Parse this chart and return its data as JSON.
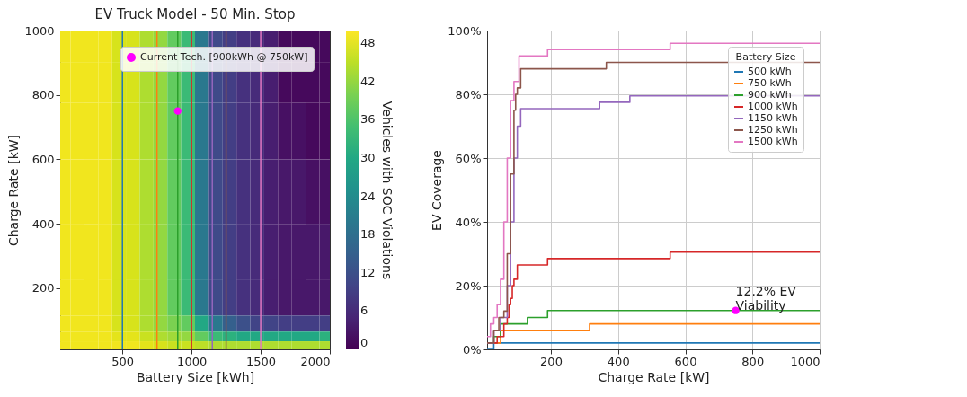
{
  "chart_data": [
    {
      "type": "heatmap",
      "title": "EV Truck Model - 50 Min. Stop",
      "xlabel": "Battery Size [kWh]",
      "ylabel": "Charge Rate [kW]",
      "clabel": "Vehicles with SOC Violations",
      "x": [
        75,
        175,
        275,
        375,
        475,
        575,
        675,
        775,
        875,
        975,
        1075,
        1175,
        1275,
        1375,
        1475,
        1575,
        1675,
        1775,
        1875,
        1975
      ],
      "y": [
        950,
        850,
        700,
        500,
        300,
        150,
        80,
        50,
        20
      ],
      "cells": [
        [
          49,
          49,
          49,
          49,
          47,
          47,
          44,
          42,
          38,
          34,
          20,
          11,
          9,
          7,
          6,
          4,
          1,
          1,
          1,
          1
        ],
        [
          49,
          49,
          49,
          49,
          47,
          47,
          44,
          42,
          38,
          34,
          20,
          11,
          9,
          7,
          6,
          4,
          1,
          1,
          1,
          1
        ],
        [
          49,
          49,
          49,
          49,
          47,
          47,
          44,
          42,
          38,
          34,
          20,
          11,
          9,
          7,
          6,
          4,
          2,
          2,
          1,
          1
        ],
        [
          49,
          49,
          49,
          49,
          47,
          47,
          44,
          42,
          38,
          34,
          20,
          11,
          9,
          7,
          6,
          4,
          3,
          3,
          2,
          2
        ],
        [
          49,
          49,
          49,
          49,
          47,
          47,
          44,
          42,
          38,
          34,
          20,
          11,
          9,
          7,
          6,
          4,
          3,
          3,
          3,
          3
        ],
        [
          49,
          49,
          49,
          49,
          47,
          47,
          44,
          42,
          38,
          34,
          20,
          11,
          9,
          7,
          6,
          4,
          3,
          3,
          3,
          3
        ],
        [
          49,
          49,
          49,
          49,
          47,
          47,
          44,
          42,
          40,
          38,
          30,
          20,
          15,
          12,
          10,
          10,
          9,
          9,
          9,
          9
        ],
        [
          49,
          49,
          49,
          49,
          48,
          48,
          46,
          44,
          43,
          42,
          38,
          34,
          32,
          30,
          30,
          30,
          30,
          30,
          30,
          32
        ],
        [
          49,
          49,
          49,
          49,
          49,
          49,
          48,
          47,
          46,
          46,
          45,
          44,
          44,
          44,
          44,
          44,
          44,
          44,
          44,
          44
        ]
      ],
      "clim": [
        0,
        50
      ],
      "cticks": [
        0,
        6,
        12,
        18,
        24,
        30,
        36,
        42,
        48
      ],
      "xlim": [
        50,
        2000
      ],
      "ylim": [
        10,
        1000
      ],
      "xticks": [
        500,
        1000,
        1500,
        2000
      ],
      "yticks": [
        200,
        400,
        600,
        800,
        1000
      ],
      "ref_lines": [
        {
          "axis": "x",
          "value": 500,
          "color": "#1f77b4"
        },
        {
          "axis": "x",
          "value": 750,
          "color": "#ff7f0e"
        },
        {
          "axis": "x",
          "value": 900,
          "color": "#2ca02c"
        },
        {
          "axis": "x",
          "value": 1000,
          "color": "#d62728"
        },
        {
          "axis": "x",
          "value": 1150,
          "color": "#9467bd"
        },
        {
          "axis": "x",
          "value": 1250,
          "color": "#8c564b"
        },
        {
          "axis": "x",
          "value": 1500,
          "color": "#e377c2"
        }
      ],
      "series": [
        {
          "type": "scatter",
          "name": "Current Tech. [900kWh @ 750kW]",
          "color": "#ff00ff",
          "x": [
            900
          ],
          "values": [
            750
          ]
        }
      ],
      "legend": "top right"
    },
    {
      "type": "step",
      "xlabel": "Charge Rate [kW]",
      "ylabel": "EV Coverage",
      "legend_title": "Battery Size",
      "legend": "top right",
      "grid": true,
      "xlim": [
        10,
        1000
      ],
      "ylim": [
        0,
        100
      ],
      "xticks": [
        200,
        400,
        600,
        800,
        1000
      ],
      "yticks": [
        {
          "value": 0,
          "label": "0%"
        },
        {
          "value": 20,
          "label": "20%"
        },
        {
          "value": 40,
          "label": "40%"
        },
        {
          "value": 60,
          "label": "60%"
        },
        {
          "value": 80,
          "label": "80%"
        },
        {
          "value": 100,
          "label": "100%"
        }
      ],
      "series": [
        {
          "name": "500 kWh",
          "color": "#1f77b4",
          "x": [
            10,
            30,
            500,
            1000
          ],
          "values": [
            0,
            2,
            2,
            2
          ]
        },
        {
          "name": "750 kWh",
          "color": "#ff7f0e",
          "x": [
            10,
            50,
            315,
            1000
          ],
          "values": [
            2,
            6,
            8,
            8
          ]
        },
        {
          "name": "900 kWh",
          "color": "#2ca02c",
          "x": [
            10,
            30,
            50,
            130,
            190,
            1000
          ],
          "values": [
            2,
            4,
            8,
            10,
            12.2,
            12.2
          ]
        },
        {
          "name": "1000 kWh",
          "color": "#d62728",
          "x": [
            10,
            40,
            60,
            70,
            75,
            80,
            85,
            90,
            100,
            190,
            555,
            1000
          ],
          "values": [
            2,
            4,
            8,
            10,
            14,
            16,
            20,
            22,
            26.5,
            28.5,
            30.5,
            30.5
          ]
        },
        {
          "name": "1150 kWh",
          "color": "#9467bd",
          "x": [
            10,
            30,
            50,
            60,
            70,
            80,
            90,
            100,
            110,
            345,
            435,
            1000
          ],
          "values": [
            2,
            6,
            10,
            10,
            20,
            40,
            60,
            70,
            75.5,
            77.5,
            79.5,
            79.5
          ]
        },
        {
          "name": "1250 kWh",
          "color": "#8c564b",
          "x": [
            10,
            30,
            45,
            60,
            70,
            80,
            90,
            95,
            100,
            110,
            365,
            1000
          ],
          "values": [
            2,
            6,
            10,
            12,
            30,
            55,
            75,
            80,
            82,
            88,
            90,
            90
          ]
        },
        {
          "name": "1500 kWh",
          "color": "#e377c2",
          "x": [
            10,
            20,
            30,
            40,
            50,
            60,
            70,
            80,
            90,
            105,
            190,
            555,
            1000
          ],
          "values": [
            4,
            8,
            10,
            14,
            22,
            40,
            60,
            78,
            84,
            92,
            94,
            96,
            96
          ]
        },
        {
          "type": "scatter",
          "color": "#ff00ff",
          "x": [
            750
          ],
          "values": [
            12.2
          ]
        }
      ],
      "annotations": [
        {
          "text": "12.2% EV\nViability",
          "x": 750,
          "y": 12.2
        }
      ]
    }
  ]
}
